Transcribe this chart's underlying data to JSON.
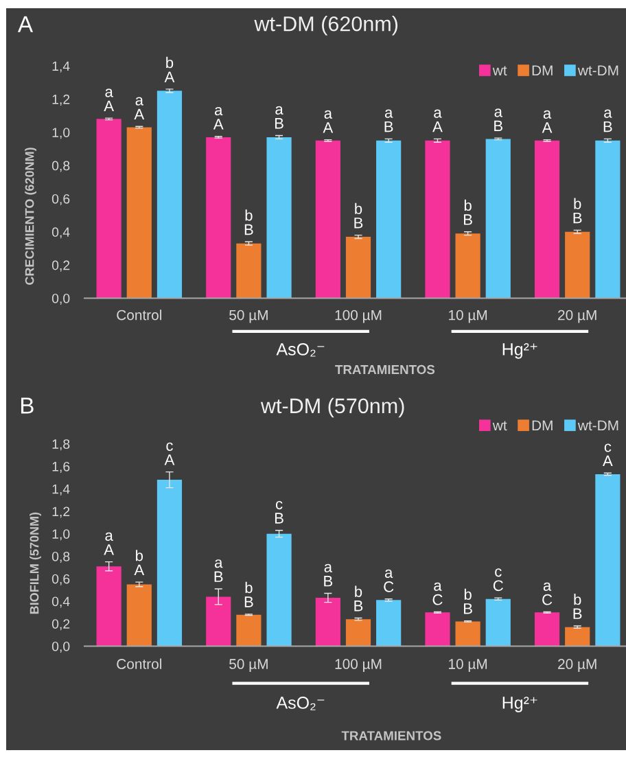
{
  "chart_data": [
    {
      "type": "bar",
      "title": "wt-DM (620nm)",
      "xlabel": "TRATAMIENTOS",
      "ylabel": "CRECIMIENTO (620NM)",
      "categories": [
        "Control",
        "50 µM",
        "100 µM",
        "10 µM",
        "20 µM"
      ],
      "series": [
        {
          "name": "wt",
          "color": "#f4329a",
          "values": [
            1.08,
            0.97,
            0.95,
            0.95,
            0.95
          ],
          "errors": [
            0.005,
            0.005,
            0.005,
            0.01,
            0.005
          ],
          "value_labels": [
            "a\nA",
            "a\nA",
            "a\nA",
            "a\nA",
            "a\nA"
          ]
        },
        {
          "name": "DM",
          "color": "#ed7d31",
          "values": [
            1.03,
            0.33,
            0.37,
            0.39,
            0.4
          ],
          "errors": [
            0.005,
            0.01,
            0.01,
            0.01,
            0.01
          ],
          "value_labels": [
            "a\nA",
            "b\nB",
            "b\nB",
            "b\nB",
            "b\nB"
          ]
        },
        {
          "name": "wt-DM",
          "color": "#5dc9f7",
          "values": [
            1.25,
            0.97,
            0.95,
            0.96,
            0.95
          ],
          "errors": [
            0.01,
            0.01,
            0.01,
            0.005,
            0.01
          ],
          "value_labels": [
            "b\nA",
            "a\nB",
            "a\nB",
            "a\nB",
            "a\nB"
          ]
        }
      ],
      "ylim": [
        0,
        1.4
      ],
      "yticks": [
        {
          "value": 0,
          "label": "0,0"
        },
        {
          "value": 0.2,
          "label": "0,2"
        },
        {
          "value": 0.4,
          "label": "0,4"
        },
        {
          "value": 0.6,
          "label": "0,6"
        },
        {
          "value": 0.8,
          "label": "0,8"
        },
        {
          "value": 1.0,
          "label": "1,0"
        },
        {
          "value": 1.2,
          "label": "1,2"
        },
        {
          "value": 1.4,
          "label": "1,4"
        }
      ],
      "legend": "top right",
      "annotations": [
        "A",
        "AsO₂⁻",
        "Hg²⁺"
      ]
    },
    {
      "type": "bar",
      "title": "wt-DM (570nm)",
      "xlabel": "TRATAMIENTOS",
      "ylabel": "BIOFILM (570NM)",
      "categories": [
        "Control",
        "50 µM",
        "100 µM",
        "10 µM",
        "20 µM"
      ],
      "series": [
        {
          "name": "wt",
          "color": "#f4329a",
          "values": [
            0.71,
            0.44,
            0.43,
            0.3,
            0.3
          ],
          "errors": [
            0.04,
            0.07,
            0.04,
            0.005,
            0.005
          ],
          "value_labels": [
            "a\nA",
            "a\nB",
            "a\nB",
            "a\nC",
            "a\nC"
          ]
        },
        {
          "name": "DM",
          "color": "#ed7d31",
          "values": [
            0.55,
            0.28,
            0.24,
            0.22,
            0.17
          ],
          "errors": [
            0.02,
            0.005,
            0.01,
            0.005,
            0.01
          ],
          "value_labels": [
            "b\nA",
            "b\nB",
            "b\nB",
            "b\nB",
            "b\nB"
          ]
        },
        {
          "name": "wt-DM",
          "color": "#5dc9f7",
          "values": [
            1.48,
            1.0,
            0.41,
            0.42,
            1.53
          ],
          "errors": [
            0.07,
            0.03,
            0.01,
            0.01,
            0.01
          ],
          "value_labels": [
            "c\nA",
            "c\nB",
            "a\nC",
            "c\nC",
            "c\nA"
          ]
        }
      ],
      "ylim": [
        0,
        1.8
      ],
      "yticks": [
        {
          "value": 0,
          "label": "0,0"
        },
        {
          "value": 0.2,
          "label": "0,2"
        },
        {
          "value": 0.4,
          "label": "0,4"
        },
        {
          "value": 0.6,
          "label": "0,6"
        },
        {
          "value": 0.8,
          "label": "0,8"
        },
        {
          "value": 1.0,
          "label": "1,0"
        },
        {
          "value": 1.2,
          "label": "1,2"
        },
        {
          "value": 1.4,
          "label": "1,4"
        },
        {
          "value": 1.6,
          "label": "1,6"
        },
        {
          "value": 1.8,
          "label": "1,8"
        }
      ],
      "legend": "top right",
      "annotations": [
        "B",
        "AsO₂⁻",
        "Hg²⁺"
      ]
    }
  ]
}
